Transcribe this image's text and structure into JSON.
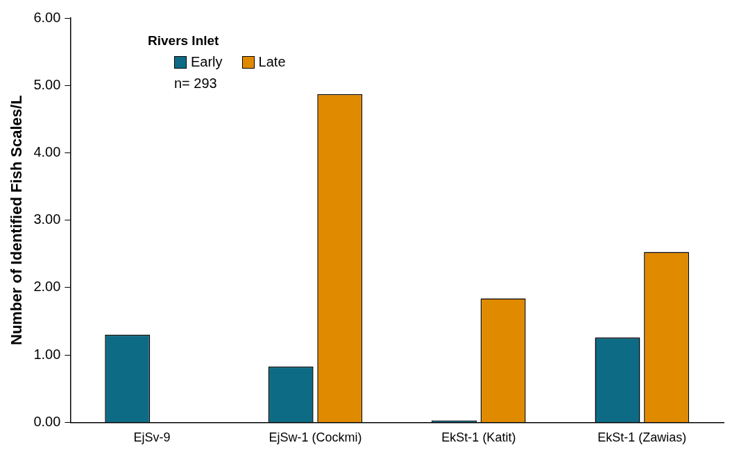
{
  "chart_data": {
    "type": "bar",
    "ylabel": "Number of Identified Fish Scales/L",
    "legend_title": "Rivers Inlet",
    "annotations": [
      "n= 293"
    ],
    "categories": [
      "EjSv-9",
      "EjSw-1 (Cockmi)",
      "EkSt-1 (Katit)",
      "EkSt-1 (Zawias)"
    ],
    "series": [
      {
        "name": "Early",
        "color": "#0e6b85",
        "values": [
          1.3,
          0.83,
          0.03,
          1.26
        ]
      },
      {
        "name": "Late",
        "color": "#e08a00",
        "values": [
          null,
          4.87,
          1.84,
          2.53
        ]
      }
    ],
    "ylim": [
      0,
      6
    ],
    "yticks": [
      {
        "value": 0,
        "label": "0.00"
      },
      {
        "value": 1,
        "label": "1.00"
      },
      {
        "value": 2,
        "label": "2.00"
      },
      {
        "value": 3,
        "label": "3.00"
      },
      {
        "value": 4,
        "label": "4.00"
      },
      {
        "value": 5,
        "label": "5.00"
      },
      {
        "value": 6,
        "label": "6.00"
      }
    ],
    "grid": false,
    "legend": "top left"
  }
}
